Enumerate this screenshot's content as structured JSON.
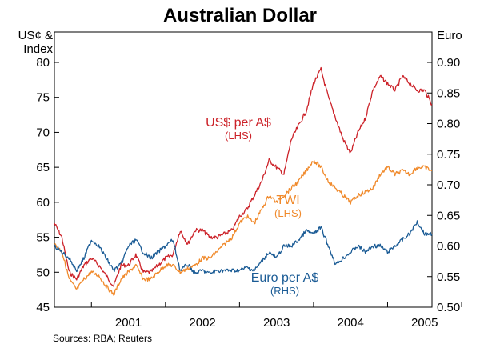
{
  "chart_data": {
    "type": "line",
    "title": "Australian Dollar",
    "left_axis_label": [
      "US¢ &",
      "Index"
    ],
    "right_axis_label": "Euro",
    "source": "Sources: RBA; Reuters",
    "left_axis": {
      "range": [
        45,
        80
      ],
      "ticks": [
        "45",
        "50",
        "55",
        "60",
        "65",
        "70",
        "75",
        "80"
      ]
    },
    "right_axis": {
      "range": [
        0.5,
        0.9
      ],
      "ticks": [
        "0.50",
        "0.55",
        "0.60",
        "0.65",
        "0.70",
        "0.75",
        "0.80",
        "0.85",
        "0.90"
      ]
    },
    "x_axis": {
      "range": [
        2000.5,
        2005.6
      ],
      "labels": [
        "2001",
        "2002",
        "2003",
        "2004",
        "2005"
      ]
    },
    "series": [
      {
        "name": "US$ per A$",
        "sub": "(LHS)",
        "axis": "left",
        "color": "#cc2229",
        "points": [
          [
            2000.5,
            57
          ],
          [
            2000.6,
            55
          ],
          [
            2000.7,
            50
          ],
          [
            2000.8,
            49
          ],
          [
            2000.9,
            51
          ],
          [
            2001.0,
            52
          ],
          [
            2001.1,
            51
          ],
          [
            2001.2,
            49.5
          ],
          [
            2001.3,
            48
          ],
          [
            2001.4,
            51
          ],
          [
            2001.5,
            51
          ],
          [
            2001.6,
            52.5
          ],
          [
            2001.7,
            50
          ],
          [
            2001.8,
            50
          ],
          [
            2001.9,
            51
          ],
          [
            2002.0,
            52
          ],
          [
            2002.1,
            52.5
          ],
          [
            2002.2,
            56
          ],
          [
            2002.3,
            54
          ],
          [
            2002.4,
            56
          ],
          [
            2002.5,
            56
          ],
          [
            2002.6,
            55
          ],
          [
            2002.7,
            55
          ],
          [
            2002.8,
            55.5
          ],
          [
            2002.9,
            56
          ],
          [
            2003.0,
            58
          ],
          [
            2003.1,
            59
          ],
          [
            2003.2,
            61
          ],
          [
            2003.3,
            63
          ],
          [
            2003.4,
            66
          ],
          [
            2003.5,
            65
          ],
          [
            2003.6,
            64
          ],
          [
            2003.7,
            69
          ],
          [
            2003.8,
            71
          ],
          [
            2003.9,
            73
          ],
          [
            2004.0,
            77
          ],
          [
            2004.1,
            79
          ],
          [
            2004.2,
            75
          ],
          [
            2004.3,
            72
          ],
          [
            2004.4,
            69
          ],
          [
            2004.5,
            67
          ],
          [
            2004.6,
            70
          ],
          [
            2004.7,
            72
          ],
          [
            2004.8,
            76
          ],
          [
            2004.9,
            78
          ],
          [
            2005.0,
            77
          ],
          [
            2005.1,
            76
          ],
          [
            2005.2,
            78
          ],
          [
            2005.3,
            77
          ],
          [
            2005.4,
            76
          ],
          [
            2005.5,
            76
          ],
          [
            2005.6,
            74
          ]
        ]
      },
      {
        "name": "TWI",
        "sub": "(LHS)",
        "axis": "left",
        "color": "#f08a2c",
        "points": [
          [
            2000.5,
            54
          ],
          [
            2000.6,
            53
          ],
          [
            2000.7,
            49
          ],
          [
            2000.8,
            47.5
          ],
          [
            2000.9,
            49
          ],
          [
            2001.0,
            50
          ],
          [
            2001.1,
            49.5
          ],
          [
            2001.2,
            48
          ],
          [
            2001.3,
            46.8
          ],
          [
            2001.4,
            49
          ],
          [
            2001.5,
            50
          ],
          [
            2001.6,
            51
          ],
          [
            2001.7,
            49
          ],
          [
            2001.8,
            49
          ],
          [
            2001.9,
            50
          ],
          [
            2002.0,
            51
          ],
          [
            2002.1,
            51
          ],
          [
            2002.2,
            50
          ],
          [
            2002.3,
            50.5
          ],
          [
            2002.4,
            51
          ],
          [
            2002.5,
            52
          ],
          [
            2002.6,
            52
          ],
          [
            2002.7,
            53
          ],
          [
            2002.8,
            54
          ],
          [
            2002.9,
            55
          ],
          [
            2003.0,
            57
          ],
          [
            2003.1,
            58
          ],
          [
            2003.2,
            57
          ],
          [
            2003.3,
            59
          ],
          [
            2003.4,
            61
          ],
          [
            2003.5,
            60
          ],
          [
            2003.6,
            61
          ],
          [
            2003.7,
            62
          ],
          [
            2003.8,
            63
          ],
          [
            2003.9,
            64.5
          ],
          [
            2004.0,
            66
          ],
          [
            2004.1,
            65
          ],
          [
            2004.2,
            63
          ],
          [
            2004.3,
            62
          ],
          [
            2004.4,
            61
          ],
          [
            2004.5,
            60
          ],
          [
            2004.6,
            61
          ],
          [
            2004.7,
            61.5
          ],
          [
            2004.8,
            62
          ],
          [
            2004.9,
            64
          ],
          [
            2005.0,
            65
          ],
          [
            2005.1,
            64
          ],
          [
            2005.2,
            64.5
          ],
          [
            2005.3,
            64
          ],
          [
            2005.4,
            65
          ],
          [
            2005.5,
            65
          ],
          [
            2005.6,
            64.5
          ]
        ]
      },
      {
        "name": "Euro per A$",
        "sub": "(RHS)",
        "axis": "right",
        "color": "#1a5b95",
        "points": [
          [
            2000.5,
            0.6
          ],
          [
            2000.6,
            0.59
          ],
          [
            2000.7,
            0.58
          ],
          [
            2000.8,
            0.56
          ],
          [
            2000.9,
            0.58
          ],
          [
            2001.0,
            0.61
          ],
          [
            2001.1,
            0.6
          ],
          [
            2001.2,
            0.58
          ],
          [
            2001.3,
            0.56
          ],
          [
            2001.4,
            0.57
          ],
          [
            2001.5,
            0.6
          ],
          [
            2001.6,
            0.61
          ],
          [
            2001.7,
            0.59
          ],
          [
            2001.8,
            0.58
          ],
          [
            2001.9,
            0.59
          ],
          [
            2002.0,
            0.6
          ],
          [
            2002.1,
            0.61
          ],
          [
            2002.2,
            0.56
          ],
          [
            2002.3,
            0.57
          ],
          [
            2002.4,
            0.555
          ],
          [
            2002.5,
            0.56
          ],
          [
            2002.6,
            0.555
          ],
          [
            2002.7,
            0.56
          ],
          [
            2002.8,
            0.56
          ],
          [
            2002.9,
            0.56
          ],
          [
            2003.0,
            0.56
          ],
          [
            2003.1,
            0.565
          ],
          [
            2003.2,
            0.56
          ],
          [
            2003.3,
            0.575
          ],
          [
            2003.4,
            0.59
          ],
          [
            2003.5,
            0.58
          ],
          [
            2003.6,
            0.6
          ],
          [
            2003.7,
            0.6
          ],
          [
            2003.8,
            0.61
          ],
          [
            2003.9,
            0.625
          ],
          [
            2004.0,
            0.62
          ],
          [
            2004.1,
            0.63
          ],
          [
            2004.2,
            0.6
          ],
          [
            2004.3,
            0.57
          ],
          [
            2004.4,
            0.58
          ],
          [
            2004.5,
            0.59
          ],
          [
            2004.6,
            0.6
          ],
          [
            2004.7,
            0.59
          ],
          [
            2004.8,
            0.6
          ],
          [
            2004.9,
            0.6
          ],
          [
            2005.0,
            0.59
          ],
          [
            2005.1,
            0.6
          ],
          [
            2005.2,
            0.61
          ],
          [
            2005.3,
            0.62
          ],
          [
            2005.4,
            0.64
          ],
          [
            2005.5,
            0.62
          ],
          [
            2005.6,
            0.62
          ]
        ]
      }
    ]
  }
}
